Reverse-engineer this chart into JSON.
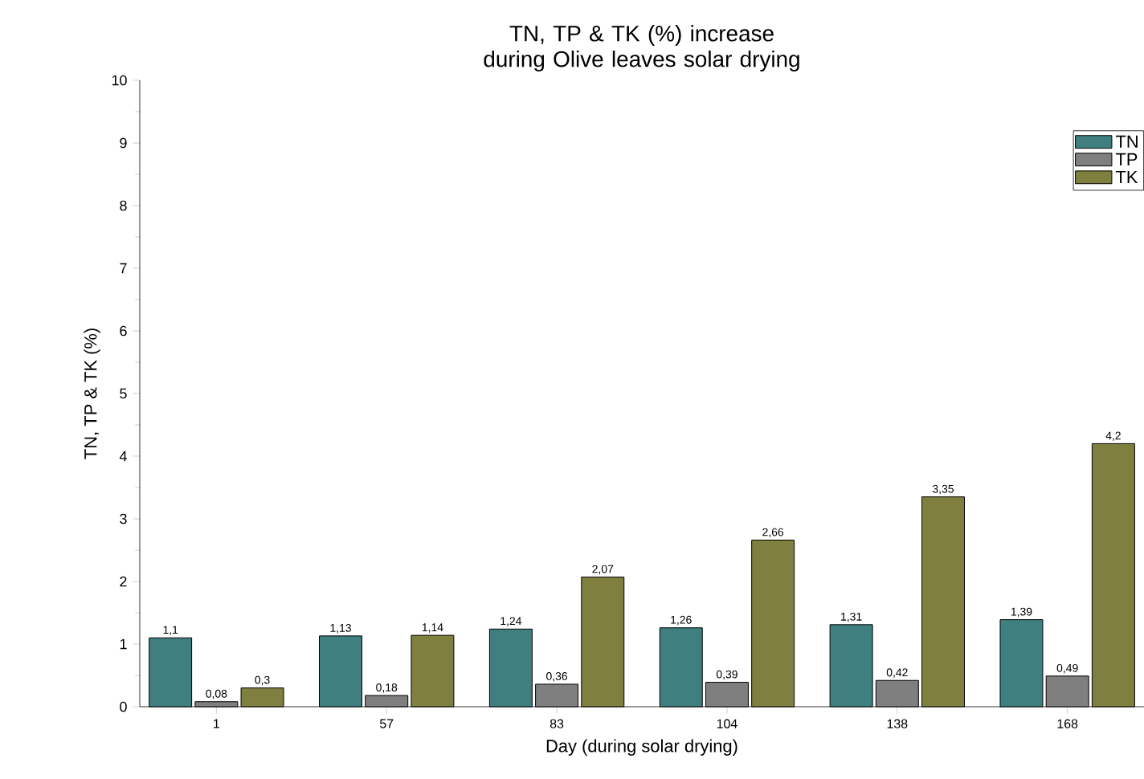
{
  "chart_data": {
    "type": "bar",
    "title": "TN, TP & TK (%) increase during Olive leaves solar drying",
    "xlabel": "Day (during solar drying)",
    "ylabel": "TN, TP & TK (%)",
    "categories": [
      "1",
      "57",
      "83",
      "104",
      "138",
      "168"
    ],
    "series": [
      {
        "name": "TN",
        "color": "#3f7f7f",
        "values": [
          1.1,
          1.13,
          1.24,
          1.26,
          1.31,
          1.39
        ],
        "value_labels": [
          "1,1",
          "1,13",
          "1,24",
          "1,26",
          "1,31",
          "1,39"
        ]
      },
      {
        "name": "TP",
        "color": "#7f7f7f",
        "values": [
          0.08,
          0.18,
          0.36,
          0.39,
          0.42,
          0.49
        ],
        "value_labels": [
          "0,08",
          "0,18",
          "0,36",
          "0,39",
          "0,42",
          "0,49"
        ]
      },
      {
        "name": "TK",
        "color": "#7f7f3f",
        "values": [
          0.3,
          1.14,
          2.07,
          2.66,
          3.35,
          4.2
        ],
        "value_labels": [
          "0,3",
          "1,14",
          "2,07",
          "2,66",
          "3,35",
          "4,2"
        ]
      }
    ],
    "ylim": [
      0,
      10
    ],
    "yticks": [
      0,
      1,
      2,
      3,
      4,
      5,
      6,
      7,
      8,
      9,
      10
    ],
    "legend": "top right",
    "grid": false
  }
}
